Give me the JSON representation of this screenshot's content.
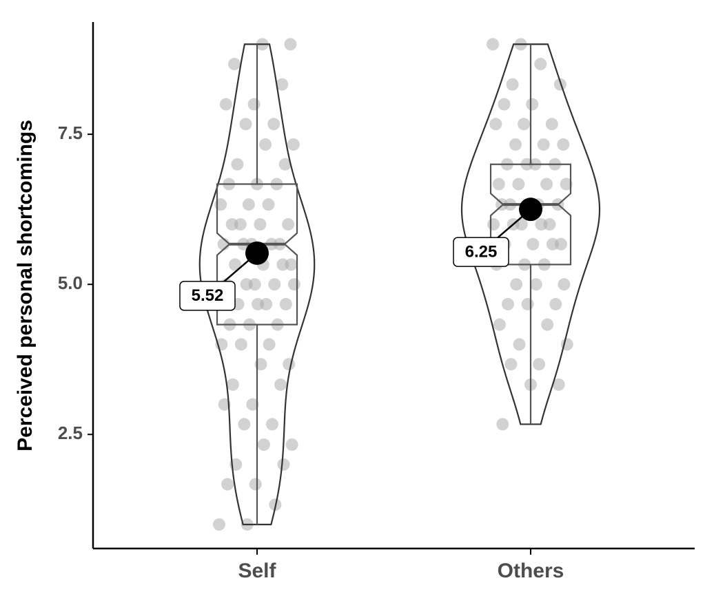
{
  "chart_data": {
    "type": "violin",
    "ylabel": "Perceived personal shortcomings",
    "ylim": [
      0.6,
      9.37
    ],
    "yticks": [
      2.5,
      {
        "value": 5,
        "label": "5.0"
      },
      7.5
    ],
    "point_color": "#a6a6a6",
    "groups": [
      {
        "name": "Self",
        "q1": 4.33,
        "median": 5.67,
        "q3": 6.67,
        "whisker_low": 1.0,
        "whisker_high": 9.0,
        "mean": 5.52,
        "points": [
          1.0,
          1.0,
          1.33,
          1.67,
          1.67,
          2.0,
          2.0,
          2.33,
          2.33,
          2.67,
          2.67,
          3.0,
          3.0,
          3.33,
          3.33,
          3.67,
          3.67,
          4.0,
          4.0,
          4.0,
          4.33,
          4.33,
          4.33,
          4.67,
          4.67,
          4.67,
          4.67,
          5.0,
          5.0,
          5.0,
          5.0,
          5.0,
          5.33,
          5.33,
          5.33,
          5.33,
          5.67,
          5.67,
          5.67,
          5.67,
          5.67,
          6.0,
          6.0,
          6.0,
          6.0,
          6.33,
          6.33,
          6.33,
          6.67,
          6.67,
          6.67,
          7.0,
          7.0,
          7.33,
          7.33,
          7.67,
          7.67,
          8.0,
          8.0,
          8.33,
          8.67,
          9.0,
          9.0
        ]
      },
      {
        "name": "Others",
        "q1": 5.33,
        "median": 6.33,
        "q3": 7.0,
        "whisker_low": 2.67,
        "whisker_high": 9.0,
        "mean": 6.25,
        "points": [
          2.67,
          3.33,
          3.33,
          3.67,
          3.67,
          4.0,
          4.0,
          4.33,
          4.33,
          4.67,
          4.67,
          4.67,
          5.0,
          5.0,
          5.0,
          5.33,
          5.33,
          5.33,
          5.67,
          5.67,
          5.67,
          5.67,
          6.0,
          6.0,
          6.0,
          6.0,
          6.0,
          6.33,
          6.33,
          6.33,
          6.33,
          6.33,
          6.67,
          6.67,
          6.67,
          6.67,
          7.0,
          7.0,
          7.0,
          7.0,
          7.33,
          7.33,
          7.33,
          7.67,
          7.67,
          7.67,
          8.0,
          8.0,
          8.33,
          8.33,
          8.67,
          9.0,
          9.0
        ]
      }
    ]
  }
}
